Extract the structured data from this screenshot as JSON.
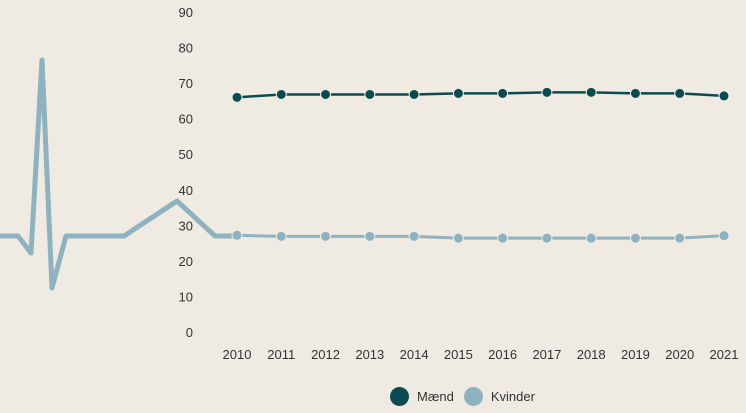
{
  "chart_data": {
    "type": "line",
    "title": "",
    "xlabel": "",
    "ylabel": "",
    "ylim": [
      0,
      90
    ],
    "yticks": [
      "0",
      "10",
      "20",
      "30",
      "40",
      "50",
      "60",
      "70",
      "80",
      "90"
    ],
    "x": [
      "2010",
      "2011",
      "2012",
      "2013",
      "2014",
      "2015",
      "2016",
      "2017",
      "2018",
      "2019",
      "2020",
      "2021"
    ],
    "series": [
      {
        "name": "Mænd",
        "color": "#0b4a50",
        "values": [
          66.0,
          66.8,
          66.8,
          66.8,
          66.8,
          67.1,
          67.1,
          67.4,
          67.4,
          67.1,
          67.1,
          66.4
        ]
      },
      {
        "name": "Kvinder",
        "color": "#8fb2c1",
        "values": [
          27.2,
          26.9,
          26.9,
          26.9,
          26.9,
          26.4,
          26.4,
          26.4,
          26.4,
          26.4,
          26.4,
          27.1
        ]
      }
    ],
    "legend": "bottom-center",
    "grid": false
  }
}
